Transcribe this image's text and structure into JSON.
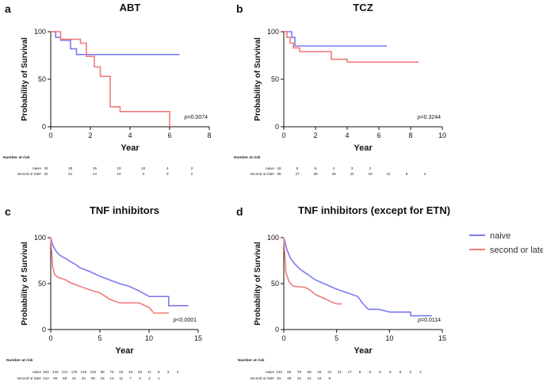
{
  "colors": {
    "naive": "#7b7bf0",
    "second": "#f07c7c",
    "axis": "#111111"
  },
  "legend": {
    "position": "right",
    "items": [
      "naive",
      "second or later"
    ]
  },
  "number_at_risk_label": "Number at risk",
  "chart_data": [
    {
      "panel": "a",
      "type": "line",
      "title": "ABT",
      "xlabel": "Year",
      "ylabel": "Probability of Survival",
      "xlim": [
        0,
        8
      ],
      "ylim": [
        0,
        100
      ],
      "xticks": [
        0,
        2,
        4,
        6,
        8
      ],
      "yticks": [
        0,
        50,
        100
      ],
      "pvalue": "=0.0074",
      "series": [
        {
          "name": "naive",
          "color": "#7b7bf0",
          "x": [
            0,
            0.25,
            0.25,
            0.5,
            0.5,
            1.0,
            1.0,
            1.3,
            1.3,
            6.5
          ],
          "y": [
            100,
            100,
            94,
            94,
            91,
            91,
            82,
            82,
            76,
            76
          ]
        },
        {
          "name": "second or later",
          "color": "#f07c7c",
          "x": [
            0,
            0.5,
            0.5,
            1.5,
            1.5,
            1.8,
            1.8,
            2.2,
            2.2,
            2.5,
            2.5,
            3.0,
            3.0,
            3.5,
            3.5,
            6.0,
            6.0
          ],
          "y": [
            100,
            100,
            92,
            92,
            88,
            88,
            74,
            74,
            63,
            63,
            53,
            53,
            21,
            21,
            16,
            16,
            0
          ]
        }
      ],
      "risk": {
        "times": [
          "34",
          "25",
          "15",
          "10",
          "10",
          "4",
          "2"
        ],
        "naive": [
          "34",
          "25",
          "15",
          "10",
          "10",
          "4",
          "2"
        ],
        "second": [
          "32",
          "21",
          "14",
          "10",
          "3",
          "3",
          "2"
        ]
      }
    },
    {
      "panel": "b",
      "type": "line",
      "title": "TCZ",
      "xlabel": "Year",
      "ylabel": "Probability of Survival",
      "xlim": [
        0,
        10
      ],
      "ylim": [
        0,
        100
      ],
      "xticks": [
        0,
        2,
        4,
        6,
        8,
        10
      ],
      "yticks": [
        0,
        50,
        100
      ],
      "pvalue": "=0.3244",
      "series": [
        {
          "name": "naive",
          "color": "#7b7bf0",
          "x": [
            0,
            0.5,
            0.5,
            0.7,
            0.7,
            6.5
          ],
          "y": [
            100,
            100,
            94,
            94,
            85,
            85
          ]
        },
        {
          "name": "second or later",
          "color": "#f07c7c",
          "x": [
            0,
            0.2,
            0.2,
            0.4,
            0.4,
            0.6,
            0.6,
            1.0,
            1.0,
            3.0,
            3.0,
            4.0,
            4.0,
            8.5
          ],
          "y": [
            100,
            100,
            94,
            94,
            88,
            88,
            83,
            83,
            79,
            79,
            71,
            71,
            68,
            68
          ]
        }
      ],
      "risk": {
        "naive": [
          "18",
          "8",
          "6",
          "4",
          "3",
          "2",
          "",
          "",
          ""
        ],
        "second": [
          "65",
          "47",
          "39",
          "29",
          "22",
          "16",
          "12",
          "8",
          "4"
        ]
      }
    },
    {
      "panel": "c",
      "type": "line",
      "title": "TNF inhibitors",
      "xlabel": "Year",
      "ylabel": "Probability of Survival",
      "xlim": [
        0,
        15
      ],
      "ylim": [
        0,
        100
      ],
      "xticks": [
        0,
        5,
        10,
        15
      ],
      "yticks": [
        0,
        50,
        100
      ],
      "pvalue": "<0.0001",
      "series": [
        {
          "name": "naive",
          "color": "#7b7bf0",
          "x": [
            0,
            0.2,
            0.5,
            0.8,
            1.2,
            1.6,
            2.0,
            2.5,
            3.0,
            4.0,
            5.0,
            6.0,
            7.0,
            8.0,
            9.0,
            10.0,
            12.0,
            12.0,
            14.0
          ],
          "y": [
            100,
            92,
            86,
            82,
            79,
            77,
            74,
            71,
            67,
            63,
            58,
            54,
            50,
            47,
            42,
            36,
            36,
            26,
            26
          ]
        },
        {
          "name": "second or later",
          "color": "#f07c7c",
          "x": [
            0,
            0.2,
            0.4,
            0.7,
            1.0,
            1.5,
            2.0,
            3.0,
            4.0,
            5.0,
            6.0,
            7.0,
            9.0,
            10.0,
            10.5,
            12.0
          ],
          "y": [
            100,
            68,
            60,
            57,
            56,
            54,
            51,
            47,
            43,
            40,
            33,
            29,
            29,
            24,
            18,
            18
          ]
        }
      ],
      "risk": {
        "naive": [
          "322",
          "240",
          "211",
          "176",
          "146",
          "120",
          "98",
          "73",
          "54",
          "40",
          "29",
          "11",
          "8",
          "3",
          "2"
        ],
        "second": [
          "122",
          "68",
          "59",
          "41",
          "34",
          "28",
          "15",
          "13",
          "11",
          "7",
          "4",
          "4",
          "1",
          "",
          ""
        ]
      }
    },
    {
      "panel": "d",
      "type": "line",
      "title": "TNF inhibitors (except for ETN)",
      "xlabel": "Year",
      "ylabel": "Probability of Survival",
      "xlim": [
        0,
        15
      ],
      "ylim": [
        0,
        100
      ],
      "xticks": [
        0,
        5,
        10,
        15
      ],
      "yticks": [
        0,
        50,
        100
      ],
      "pvalue": "=0.0114",
      "series": [
        {
          "name": "naive",
          "color": "#7b7bf0",
          "x": [
            0,
            0.3,
            0.6,
            1.0,
            1.5,
            2.0,
            3.0,
            4.0,
            5.0,
            6.0,
            7.0,
            7.5,
            8.0,
            9.0,
            10.0,
            12.0,
            12.0,
            14.0
          ],
          "y": [
            100,
            87,
            78,
            72,
            66,
            62,
            54,
            49,
            44,
            40,
            36,
            28,
            22,
            22,
            19,
            19,
            15,
            15
          ]
        },
        {
          "name": "second or later",
          "color": "#f07c7c",
          "x": [
            0,
            0.2,
            0.5,
            0.8,
            1.0,
            2.0,
            2.5,
            3.0,
            4.0,
            4.5,
            5.0,
            5.5
          ],
          "y": [
            100,
            62,
            52,
            48,
            47,
            46,
            43,
            38,
            33,
            30,
            28,
            28
          ]
        }
      ],
      "risk": {
        "naive": [
          "142",
          "90",
          "79",
          "58",
          "44",
          "31",
          "21",
          "17",
          "8",
          "6",
          "6",
          "6",
          "5",
          "3",
          "2"
        ],
        "second": [
          "81",
          "38",
          "32",
          "21",
          "15",
          "9",
          "",
          "",
          "",
          "",
          "",
          "",
          "",
          "",
          ""
        ]
      }
    }
  ]
}
